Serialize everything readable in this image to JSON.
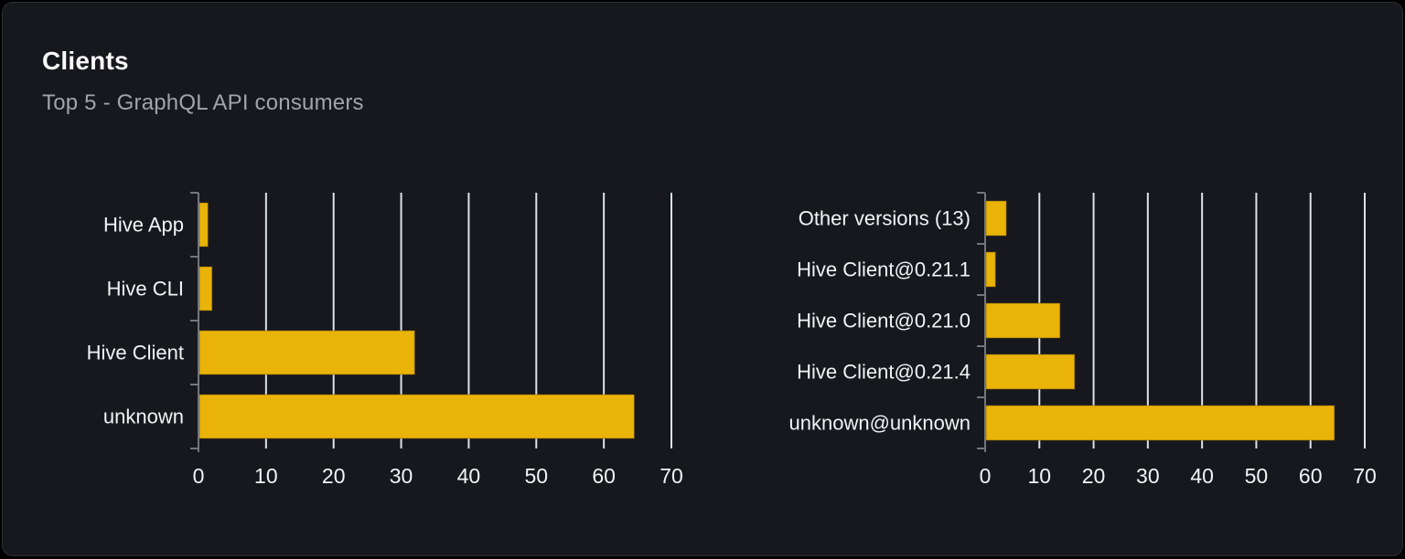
{
  "card": {
    "title": "Clients",
    "subtitle": "Top 5 - GraphQL API consumers"
  },
  "colors": {
    "bar": "#eab308",
    "bar_edge": "#6f5712",
    "grid": "#dce2ec",
    "axis": "#72767e",
    "tick_label": "#f2f3f5",
    "category_label": "#f2f3f5",
    "title": "#fafafa",
    "subtitle": "#a0a4ac",
    "card_bg": "#16181d",
    "card_border": "#2b2e35",
    "page_bg": "#000000"
  },
  "chart_data": [
    {
      "type": "bar",
      "orientation": "horizontal",
      "title": "",
      "xlabel": "",
      "ylabel": "",
      "categories": [
        "Hive App",
        "Hive CLI",
        "Hive Client",
        "unknown"
      ],
      "values": [
        1.4,
        2,
        32,
        64.5
      ],
      "xlim": [
        0,
        70
      ],
      "xticks": [
        0,
        10,
        20,
        30,
        40,
        50,
        60,
        70
      ],
      "grid": true,
      "legend": "none"
    },
    {
      "type": "bar",
      "orientation": "horizontal",
      "title": "",
      "xlabel": "",
      "ylabel": "",
      "categories": [
        "Other versions (13)",
        "Hive Client@0.21.1",
        "Hive Client@0.21.0",
        "Hive Client@0.21.4",
        "unknown@unknown"
      ],
      "values": [
        3.9,
        1.9,
        13.8,
        16.5,
        64.4
      ],
      "xlim": [
        0,
        70
      ],
      "xticks": [
        0,
        10,
        20,
        30,
        40,
        50,
        60,
        70
      ],
      "grid": true,
      "legend": "none"
    }
  ]
}
